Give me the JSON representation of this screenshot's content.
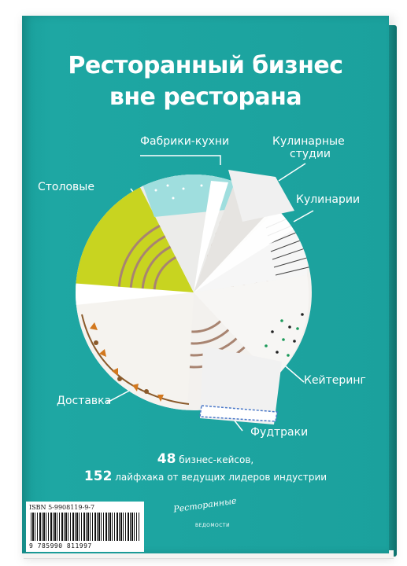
{
  "cover": {
    "title_line1": "Ресторанный бизнес",
    "title_line2": "вне ресторана",
    "segments": {
      "stolovye": "Столовые",
      "fabriki": "Фабрики-кухни",
      "kulinarnye_studii_line1": "Кулинарные",
      "kulinarnye_studii_line2": "студии",
      "kulinarii": "Кулинарии",
      "keitering": "Кейтеринг",
      "fudtraki": "Фудтраки",
      "dostavka": "Доставка"
    },
    "subtitle": {
      "num1": "48",
      "text1": "бизнес-кейсов,",
      "num2": "152",
      "text2": "лайфхака от ведущих лидеров индустрии"
    },
    "isbn": "ISBN 5-9908119-9-7",
    "ean": "9 785990 811997",
    "publisher_line1": "Ресторанные",
    "publisher_line2": "Ресторанные",
    "publisher_line3": "ВЕДОМОСТИ",
    "colors": {
      "cover": "#1ba19d",
      "lime": "#c8d420",
      "mint": "#9fdede",
      "plate": "#f3f1ee"
    }
  }
}
